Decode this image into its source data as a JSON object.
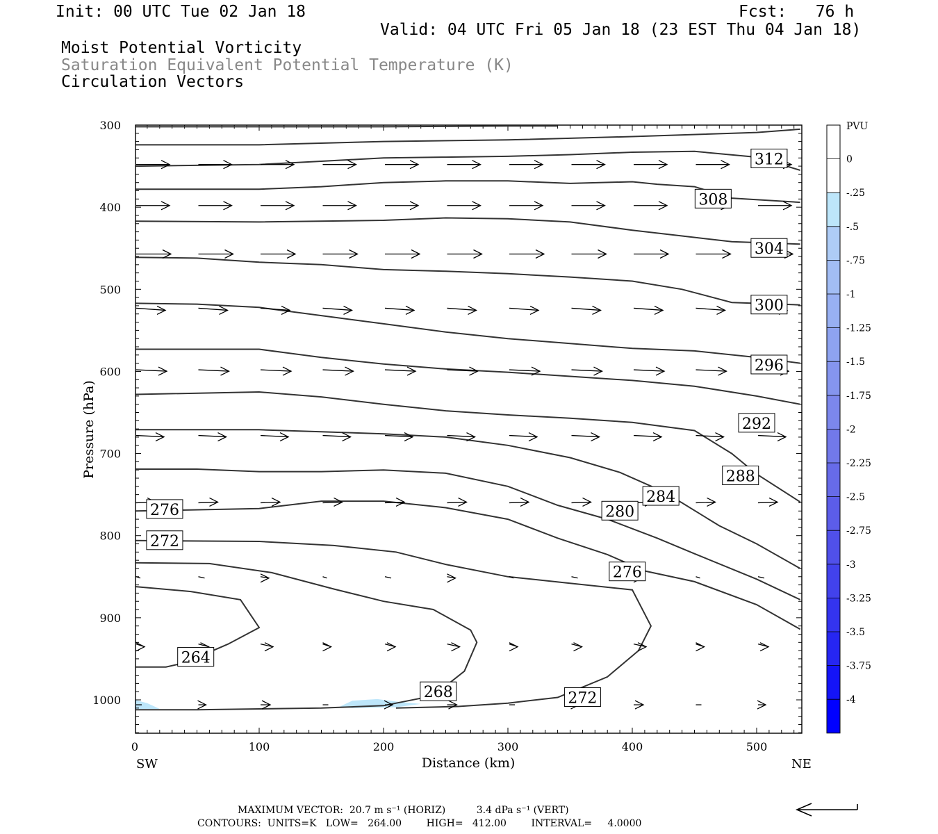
{
  "header": {
    "init": "Init: 00 UTC Tue 02 Jan 18",
    "fcst": "Fcst:   76 h",
    "valid": "Valid: 04 UTC Fri 05 Jan 18 (23 EST Thu 04 Jan 18)",
    "field1": "Moist Potential Vorticity",
    "field2": "Saturation Equivalent Potential Temperature (K)",
    "field3": "Circulation Vectors",
    "field2_color": "#888888"
  },
  "footer": {
    "line1": "MAXIMUM VECTOR:  20.7 m s⁻¹ (HORIZ)          3.4 dPa s⁻¹ (VERT)",
    "line2": "CONTOURS:  UNITS=K   LOW=   264.00        HIGH=   412.00        INTERVAL=     4.0000"
  },
  "chart_data": {
    "type": "cross-section contour",
    "xlabel": "Distance (km)",
    "ylabel": "Pressure (hPa)",
    "xlim": [
      0,
      535
    ],
    "ylim": [
      1040,
      300
    ],
    "x_ticks": [
      0,
      100,
      200,
      300,
      400,
      500
    ],
    "y_ticks": [
      300,
      400,
      500,
      600,
      700,
      800,
      900,
      1000
    ],
    "x_left_label": "SW",
    "x_right_label": "NE",
    "colorbar": {
      "unit": "PVU",
      "ticks": [
        "0",
        "-.25",
        "-.5",
        "-.75",
        "-1",
        "-1.25",
        "-1.5",
        "-1.75",
        "-2",
        "-2.25",
        "-2.5",
        "-2.75",
        "-3",
        "-3.25",
        "-3.5",
        "-3.75",
        "-4"
      ],
      "colors": [
        "#ffffff",
        "#ffffff",
        "#bde6fa",
        "#aeccf6",
        "#a2bdf4",
        "#98b0f2",
        "#8ea3f0",
        "#8595ee",
        "#7c87ec",
        "#7279ea",
        "#676be9",
        "#5c5de9",
        "#5050ea",
        "#4242ec",
        "#3434ef",
        "#2626f2",
        "#1414f8",
        "#0000ff"
      ]
    },
    "contours": [
      {
        "label": "264",
        "points": [
          [
            0,
            862
          ],
          [
            45,
            868
          ],
          [
            85,
            878
          ],
          [
            100,
            912
          ],
          [
            75,
            932
          ],
          [
            40,
            955
          ],
          [
            25,
            960
          ],
          [
            0,
            960
          ]
        ],
        "label_at": [
          49,
          948
        ]
      },
      {
        "label": "268",
        "points": [
          [
            0,
            833
          ],
          [
            60,
            834
          ],
          [
            110,
            845
          ],
          [
            160,
            865
          ],
          [
            200,
            880
          ],
          [
            240,
            890
          ],
          [
            270,
            915
          ],
          [
            275,
            930
          ],
          [
            265,
            965
          ],
          [
            240,
            995
          ],
          [
            200,
            1007
          ],
          [
            150,
            1010
          ],
          [
            100,
            1011
          ],
          [
            50,
            1012
          ],
          [
            0,
            1012
          ]
        ],
        "label_at": [
          244,
          990
        ]
      },
      {
        "label": "272",
        "points": [
          [
            0,
            806
          ],
          [
            100,
            807
          ],
          [
            160,
            812
          ],
          [
            210,
            820
          ],
          [
            250,
            835
          ],
          [
            300,
            850
          ],
          [
            350,
            858
          ],
          [
            400,
            866
          ],
          [
            415,
            910
          ],
          [
            405,
            940
          ],
          [
            380,
            972
          ],
          [
            340,
            997
          ],
          [
            300,
            1004
          ],
          [
            260,
            1008
          ],
          [
            210,
            1010
          ]
        ],
        "label_at": [
          360,
          997
        ]
      },
      {
        "label": "272",
        "points": [
          [
            0,
            805
          ],
          [
            60,
            805
          ]
        ],
        "label_at": [
          24,
          806
        ],
        "label_only": true
      },
      {
        "label": "276",
        "points": [
          [
            0,
            770
          ],
          [
            100,
            767
          ],
          [
            150,
            758
          ],
          [
            200,
            758
          ],
          [
            250,
            766
          ],
          [
            300,
            780
          ],
          [
            340,
            803
          ],
          [
            380,
            823
          ],
          [
            410,
            843
          ],
          [
            450,
            856
          ],
          [
            500,
            884
          ],
          [
            535,
            914
          ]
        ],
        "label_at": [
          396,
          844
        ]
      },
      {
        "label": "276",
        "points": [
          [
            0,
            770
          ],
          [
            60,
            770
          ]
        ],
        "label_at": [
          24,
          768
        ],
        "label_only": true
      },
      {
        "label": "280",
        "points": [
          [
            0,
            719
          ],
          [
            50,
            719
          ],
          [
            100,
            722
          ],
          [
            150,
            722
          ],
          [
            200,
            720
          ],
          [
            250,
            724
          ],
          [
            300,
            740
          ],
          [
            340,
            763
          ],
          [
            380,
            780
          ],
          [
            420,
            803
          ],
          [
            450,
            822
          ],
          [
            500,
            853
          ],
          [
            535,
            878
          ]
        ],
        "label_at": [
          390,
          770
        ]
      },
      {
        "label": "284",
        "points": [
          [
            0,
            671
          ],
          [
            100,
            671
          ],
          [
            200,
            676
          ],
          [
            250,
            680
          ],
          [
            300,
            690
          ],
          [
            350,
            705
          ],
          [
            390,
            723
          ],
          [
            420,
            743
          ],
          [
            440,
            760
          ],
          [
            470,
            788
          ],
          [
            500,
            810
          ],
          [
            535,
            840
          ]
        ],
        "label_at": [
          423,
          752
        ]
      },
      {
        "label": "288",
        "points": [
          [
            0,
            628
          ],
          [
            100,
            625
          ],
          [
            150,
            631
          ],
          [
            200,
            640
          ],
          [
            250,
            648
          ],
          [
            300,
            653
          ],
          [
            350,
            657
          ],
          [
            400,
            662
          ],
          [
            450,
            672
          ],
          [
            480,
            700
          ],
          [
            500,
            725
          ],
          [
            535,
            759
          ]
        ],
        "label_at": [
          487,
          727
        ]
      },
      {
        "label": "292",
        "points": [
          [
            0,
            573
          ],
          [
            50,
            573
          ],
          [
            100,
            573
          ],
          [
            150,
            583
          ],
          [
            200,
            591
          ],
          [
            250,
            597
          ],
          [
            300,
            601
          ],
          [
            350,
            606
          ],
          [
            400,
            611
          ],
          [
            450,
            618
          ],
          [
            500,
            630
          ],
          [
            535,
            640
          ]
        ],
        "label_at": [
          500,
          663
        ]
      },
      {
        "label": "296",
        "points": [
          [
            0,
            517
          ],
          [
            50,
            518
          ],
          [
            100,
            522
          ],
          [
            150,
            532
          ],
          [
            200,
            542
          ],
          [
            250,
            552
          ],
          [
            300,
            560
          ],
          [
            350,
            566
          ],
          [
            400,
            572
          ],
          [
            450,
            575
          ],
          [
            500,
            583
          ],
          [
            535,
            590
          ]
        ],
        "label_at": [
          510,
          592
        ]
      },
      {
        "label": "300",
        "points": [
          [
            0,
            461
          ],
          [
            50,
            462
          ],
          [
            100,
            467
          ],
          [
            150,
            470
          ],
          [
            200,
            476
          ],
          [
            250,
            478
          ],
          [
            300,
            481
          ],
          [
            350,
            485
          ],
          [
            400,
            490
          ],
          [
            440,
            500
          ],
          [
            480,
            516
          ],
          [
            535,
            519
          ]
        ],
        "label_at": [
          510,
          519
        ]
      },
      {
        "label": "304",
        "points": [
          [
            0,
            417
          ],
          [
            100,
            418
          ],
          [
            200,
            416
          ],
          [
            250,
            413
          ],
          [
            300,
            414
          ],
          [
            350,
            418
          ],
          [
            400,
            428
          ],
          [
            440,
            435
          ],
          [
            480,
            442
          ],
          [
            535,
            445
          ]
        ],
        "label_at": [
          510,
          450
        ]
      },
      {
        "label": "308",
        "points": [
          [
            0,
            378
          ],
          [
            100,
            378
          ],
          [
            150,
            375
          ],
          [
            200,
            370
          ],
          [
            250,
            368
          ],
          [
            300,
            368
          ],
          [
            350,
            371
          ],
          [
            400,
            369
          ],
          [
            420,
            372
          ],
          [
            450,
            375
          ],
          [
            480,
            389
          ],
          [
            535,
            394
          ]
        ],
        "label_at": [
          465,
          390
        ]
      },
      {
        "label": "312",
        "points": [
          [
            0,
            350
          ],
          [
            100,
            348
          ],
          [
            150,
            344
          ],
          [
            200,
            340
          ],
          [
            250,
            339
          ],
          [
            300,
            338
          ],
          [
            350,
            336
          ],
          [
            400,
            333
          ],
          [
            450,
            332
          ],
          [
            500,
            339
          ],
          [
            535,
            355
          ]
        ],
        "label_at": [
          510,
          341
        ]
      },
      {
        "label": "",
        "points": [
          [
            0,
            324
          ],
          [
            100,
            324
          ],
          [
            200,
            320
          ],
          [
            300,
            318
          ],
          [
            400,
            314
          ],
          [
            500,
            309
          ],
          [
            535,
            305
          ]
        ]
      },
      {
        "label": "",
        "points": [
          [
            0,
            302
          ],
          [
            100,
            302
          ],
          [
            200,
            302
          ],
          [
            300,
            301
          ],
          [
            340,
            301
          ]
        ]
      }
    ],
    "vectors_note": "circulation vectors along cross-section; reference vector shown bottom-right",
    "shading": [
      {
        "points": [
          [
            0,
            1000
          ],
          [
            10,
            1004
          ],
          [
            20,
            1011
          ],
          [
            0,
            1011
          ]
        ],
        "color": "#bde6fa"
      },
      {
        "points": [
          [
            165,
            1008
          ],
          [
            175,
            1001
          ],
          [
            195,
            999
          ],
          [
            210,
            1002
          ],
          [
            230,
            1005
          ],
          [
            210,
            1009
          ],
          [
            175,
            1010
          ]
        ],
        "color": "#bde6fa"
      }
    ]
  }
}
